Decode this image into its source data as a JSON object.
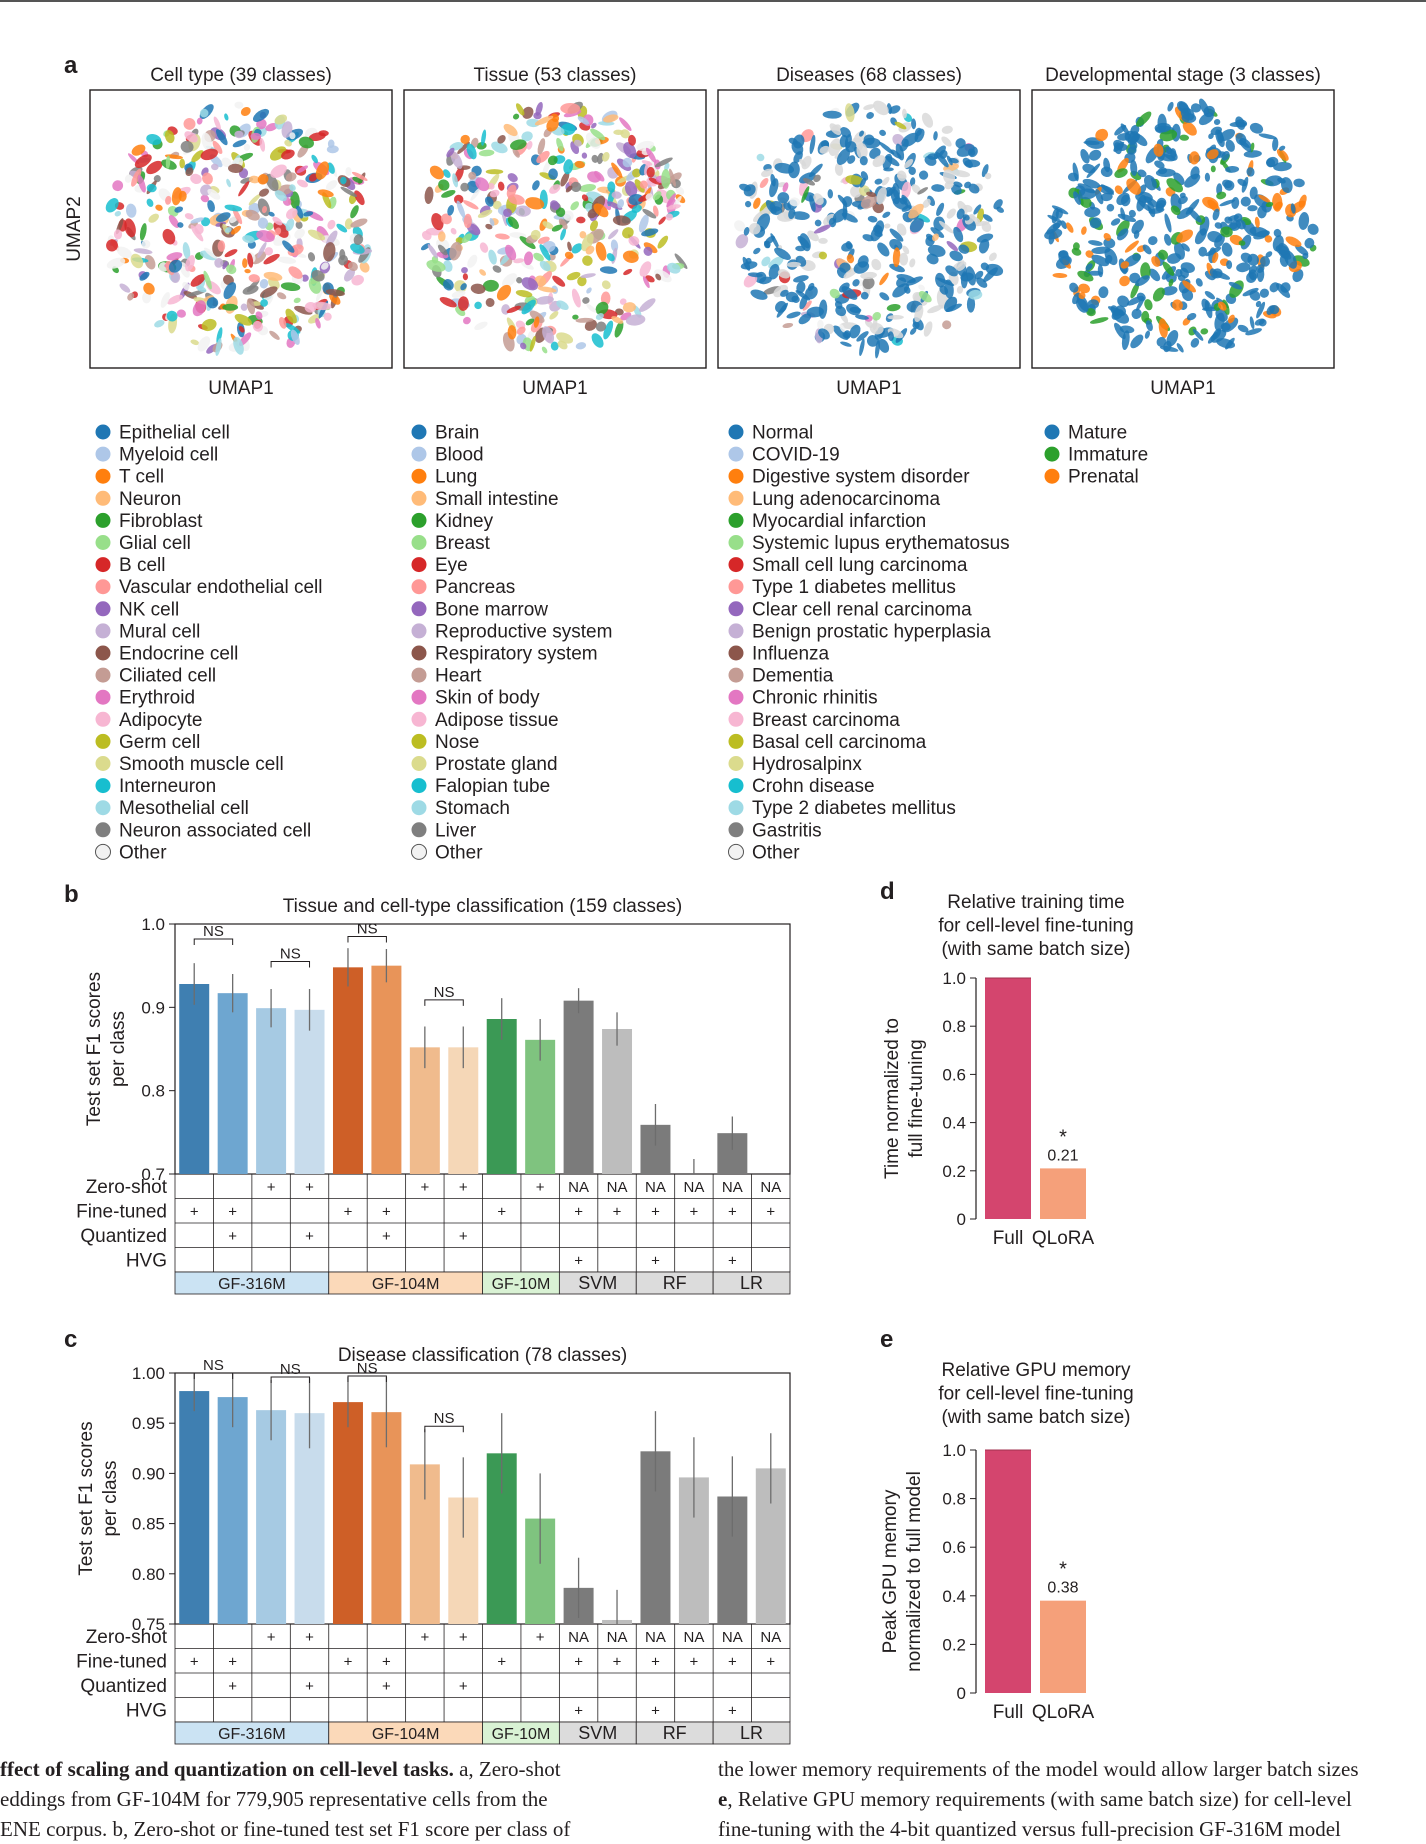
{
  "panel_letters": {
    "a": "a",
    "b": "b",
    "c": "c",
    "d": "d",
    "e": "e"
  },
  "umap": {
    "titles": [
      "Cell type (39 classes)",
      "Tissue (53 classes)",
      "Diseases (68 classes)",
      "Developmental stage (3 classes)"
    ],
    "xlabel": "UMAP1",
    "ylabel": "UMAP2"
  },
  "legends": {
    "cell_type": [
      "Epithelial cell",
      "Myeloid cell",
      "T cell",
      "Neuron",
      "Fibroblast",
      "Glial cell",
      "B cell",
      "Vascular endothelial cell",
      "NK cell",
      "Mural cell",
      "Endocrine cell",
      "Ciliated cell",
      "Erythroid",
      "Adipocyte",
      "Germ cell",
      "Smooth muscle cell",
      "Interneuron",
      "Mesothelial cell",
      "Neuron associated cell",
      "Other"
    ],
    "tissue": [
      "Brain",
      "Blood",
      "Lung",
      "Small intestine",
      "Kidney",
      "Breast",
      "Eye",
      "Pancreas",
      "Bone marrow",
      "Reproductive system",
      "Respiratory system",
      "Heart",
      "Skin of body",
      "Adipose tissue",
      "Nose",
      "Prostate gland",
      "Falopian tube",
      "Stomach",
      "Liver",
      "Other"
    ],
    "diseases": [
      "Normal",
      "COVID-19",
      "Digestive system disorder",
      "Lung adenocarcinoma",
      "Myocardial infarction",
      "Systemic lupus erythematosus",
      "Small cell lung carcinoma",
      "Type 1 diabetes mellitus",
      "Clear cell renal carcinoma",
      "Benign prostatic hyperplasia",
      "Influenza",
      "Dementia",
      "Chronic rhinitis",
      "Breast carcinoma",
      "Basal cell carcinoma",
      "Hydrosalpinx",
      "Crohn disease",
      "Type 2 diabetes mellitus",
      "Gastritis",
      "Other"
    ],
    "dev_stage": [
      "Mature",
      "Immature",
      "Prenatal"
    ],
    "palette": [
      "#1f77b4",
      "#aec7e8",
      "#ff7f0e",
      "#ffbb78",
      "#2ca02c",
      "#98df8a",
      "#d62728",
      "#ff9896",
      "#9467bd",
      "#c5b0d5",
      "#8c564b",
      "#c49c94",
      "#e377c2",
      "#f7b6d2",
      "#bcbd22",
      "#dbdb8d",
      "#17becf",
      "#9edae5",
      "#7f7f7f",
      "#f2f2f2"
    ],
    "dev_palette": [
      "#1f77b4",
      "#2ca02c",
      "#ff7f0e"
    ]
  },
  "table": {
    "row_labels": [
      "Zero-shot",
      "Fine-tuned",
      "Quantized",
      "HVG"
    ],
    "b_rows": [
      [
        "",
        "",
        "+",
        "+",
        "",
        "",
        "+",
        "+",
        "",
        "+",
        "NA",
        "NA",
        "NA",
        "NA",
        "NA",
        "NA"
      ],
      [
        "+",
        "+",
        "",
        "",
        "+",
        "+",
        "",
        "",
        "+",
        "",
        "+",
        "+",
        "+",
        "+",
        "+",
        "+"
      ],
      [
        "",
        "+",
        "",
        "+",
        "",
        "+",
        "",
        "+",
        "",
        "",
        "",
        "",
        "",
        "",
        "",
        ""
      ],
      [
        "",
        "",
        "",
        "",
        "",
        "",
        "",
        "",
        "",
        "",
        "+",
        "",
        "+",
        "",
        "+",
        ""
      ]
    ],
    "c_rows": [
      [
        "",
        "",
        "+",
        "+",
        "",
        "",
        "+",
        "+",
        "",
        "+",
        "NA",
        "NA",
        "NA",
        "NA",
        "NA",
        "NA"
      ],
      [
        "+",
        "+",
        "",
        "",
        "+",
        "+",
        "",
        "",
        "+",
        "",
        "+",
        "+",
        "+",
        "+",
        "+",
        "+"
      ],
      [
        "",
        "+",
        "",
        "+",
        "",
        "+",
        "",
        "+",
        "",
        "",
        "",
        "",
        "",
        "",
        "",
        ""
      ],
      [
        "",
        "",
        "",
        "",
        "",
        "",
        "",
        "",
        "",
        "",
        "+",
        "",
        "+",
        "",
        "+",
        ""
      ]
    ],
    "groups": [
      {
        "name": "GF-316M",
        "span": 4,
        "color": "#cbe3f3"
      },
      {
        "name": "GF-104M",
        "span": 4,
        "color": "#fbd9b9"
      },
      {
        "name": "GF-10M",
        "span": 2,
        "color": "#d9f2d4"
      },
      {
        "name": "SVM",
        "span": 2,
        "color": "#dcdcdc"
      },
      {
        "name": "RF",
        "span": 2,
        "color": "#dcdcdc"
      },
      {
        "name": "LR",
        "span": 2,
        "color": "#dcdcdc"
      }
    ]
  },
  "chart_data": [
    {
      "panel": "b",
      "type": "bar",
      "title": "Tissue and cell-type classification (159 classes)",
      "ylabel": "Test set F1 scores per class",
      "ylim": [
        0.7,
        1.0
      ],
      "yticks": [
        "0.7",
        "0.8",
        "0.9",
        "1.0"
      ],
      "values": [
        0.928,
        0.917,
        0.899,
        0.897,
        0.948,
        0.95,
        0.852,
        0.852,
        0.886,
        0.861,
        0.908,
        0.874,
        0.759,
        0.698,
        0.749,
        0.69
      ],
      "errors": [
        0.025,
        0.023,
        0.023,
        0.025,
        0.023,
        0.02,
        0.025,
        0.025,
        0.025,
        0.025,
        0.015,
        0.02,
        0.025,
        0.02,
        0.02,
        0.0
      ],
      "colors": [
        "#3f7fb1",
        "#6ea6d0",
        "#a6cae3",
        "#c8dcec",
        "#ce5f27",
        "#e89459",
        "#f0bb8d",
        "#f5d7b7",
        "#3b9955",
        "#7fc37f",
        "#7b7b7b",
        "#bdbdbd",
        "#7b7b7b",
        "#bdbdbd",
        "#7b7b7b",
        "#bdbdbd"
      ],
      "ns_brackets": [
        {
          "from": 0,
          "to": 1,
          "y": 0.982,
          "label": "NS"
        },
        {
          "from": 2,
          "to": 3,
          "y": 0.955,
          "label": "NS"
        },
        {
          "from": 4,
          "to": 5,
          "y": 0.985,
          "label": "NS"
        },
        {
          "from": 6,
          "to": 7,
          "y": 0.909,
          "label": "NS"
        }
      ]
    },
    {
      "panel": "c",
      "type": "bar",
      "title": "Disease classification (78 classes)",
      "ylabel": "Test set F1 scores per class",
      "ylim": [
        0.75,
        1.0
      ],
      "yticks": [
        "0.75",
        "0.80",
        "0.85",
        "0.90",
        "0.95",
        "1.00"
      ],
      "values": [
        0.982,
        0.976,
        0.963,
        0.96,
        0.971,
        0.961,
        0.909,
        0.876,
        0.92,
        0.855,
        0.786,
        0.754,
        0.922,
        0.896,
        0.877,
        0.905
      ],
      "errors": [
        0.02,
        0.03,
        0.03,
        0.035,
        0.025,
        0.035,
        0.035,
        0.04,
        0.04,
        0.045,
        0.03,
        0.03,
        0.04,
        0.04,
        0.04,
        0.035
      ],
      "colors": [
        "#3f7fb1",
        "#6ea6d0",
        "#a6cae3",
        "#c8dcec",
        "#ce5f27",
        "#e89459",
        "#f0bb8d",
        "#f5d7b7",
        "#3b9955",
        "#7fc37f",
        "#7b7b7b",
        "#bdbdbd",
        "#7b7b7b",
        "#bdbdbd",
        "#7b7b7b",
        "#bdbdbd"
      ],
      "ns_brackets": [
        {
          "from": 0,
          "to": 1,
          "y": 1.0,
          "label": "NS"
        },
        {
          "from": 2,
          "to": 3,
          "y": 0.996,
          "label": "NS"
        },
        {
          "from": 4,
          "to": 5,
          "y": 0.997,
          "label": "NS"
        },
        {
          "from": 6,
          "to": 7,
          "y": 0.947,
          "label": "NS"
        }
      ]
    },
    {
      "panel": "d",
      "type": "bar",
      "title": [
        "Relative training time",
        "for cell-level fine-tuning",
        "(with same batch size)"
      ],
      "ylabel": [
        "Time normalized to",
        "full fine-tuning"
      ],
      "categories": [
        "Full",
        "QLoRA"
      ],
      "values": [
        1.0,
        0.21
      ],
      "value_labels": [
        "",
        "0.21"
      ],
      "star": [
        "",
        "*"
      ],
      "ylim": [
        0,
        1.0
      ],
      "yticks": [
        "0",
        "0.2",
        "0.4",
        "0.6",
        "0.8",
        "1.0"
      ],
      "colors": [
        "#d4456e",
        "#f5a07a"
      ]
    },
    {
      "panel": "e",
      "type": "bar",
      "title": [
        "Relative GPU memory",
        "for cell-level fine-tuning",
        "(with same batch size)"
      ],
      "ylabel": [
        "Peak GPU memory",
        "normalized to full model"
      ],
      "categories": [
        "Full",
        "QLoRA"
      ],
      "values": [
        1.0,
        0.38
      ],
      "value_labels": [
        "",
        "0.38"
      ],
      "star": [
        "",
        "*"
      ],
      "ylim": [
        0,
        1.0
      ],
      "yticks": [
        "0",
        "0.2",
        "0.4",
        "0.6",
        "0.8",
        "1.0"
      ],
      "colors": [
        "#d4456e",
        "#f5a07a"
      ]
    }
  ],
  "caption": {
    "left": [
      {
        "bold": "ffect of scaling and quantization on cell-level tasks.",
        "rest": " a, Zero-shot"
      },
      {
        "bold": "",
        "rest": "eddings from GF-104M for 779,905 representative cells from the"
      },
      {
        "bold": "",
        "rest": "ENE corpus. b, Zero-shot or fine-tuned test set F1 score per class of"
      }
    ],
    "right": [
      {
        "bold": "",
        "rest": "the lower memory requirements of the model would allow larger batch sizes"
      },
      {
        "bold": "e",
        "rest": ", Relative GPU memory requirements (with same batch size) for cell-level"
      },
      {
        "bold": "",
        "rest": "fine-tuning with the 4-bit quantized versus full-precision GF-316M model"
      }
    ]
  }
}
